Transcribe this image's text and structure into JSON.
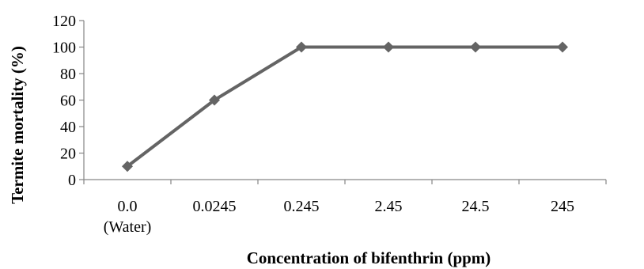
{
  "chart_data": {
    "type": "line",
    "title": "",
    "xlabel": "Concentration of bifenthrin (ppm)",
    "ylabel": "Termite mortality (%)",
    "categories": [
      {
        "line1": "0.0",
        "line2": "(Water)"
      },
      {
        "line1": "0.0245",
        "line2": ""
      },
      {
        "line1": "0.245",
        "line2": ""
      },
      {
        "line1": "2.45",
        "line2": ""
      },
      {
        "line1": "24.5",
        "line2": ""
      },
      {
        "line1": "245",
        "line2": ""
      }
    ],
    "series": [
      {
        "values": [
          10,
          60,
          100,
          100,
          100,
          100
        ],
        "color": "#646464",
        "marker": "diamond-icon"
      }
    ],
    "ylim": [
      0,
      120
    ],
    "yticks": [
      0,
      20,
      40,
      60,
      80,
      100,
      120
    ],
    "grid": false,
    "legend": "none",
    "axis_color": "#868686"
  }
}
